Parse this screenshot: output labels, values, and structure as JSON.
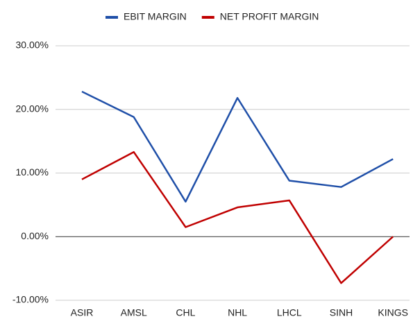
{
  "chart_data": {
    "type": "line",
    "categories": [
      "ASIR",
      "AMSL",
      "CHL",
      "NHL",
      "LHCL",
      "SINH",
      "KINGS"
    ],
    "series": [
      {
        "name": "EBIT MARGIN",
        "color": "#1f4fa8",
        "values": [
          22.8,
          18.8,
          5.5,
          21.8,
          8.8,
          7.8,
          12.2
        ]
      },
      {
        "name": "NET PROFIT MARGIN",
        "color": "#c00000",
        "values": [
          9.0,
          13.3,
          1.5,
          4.6,
          5.7,
          -7.3,
          0
        ]
      }
    ],
    "ylim": [
      -10,
      30
    ],
    "yticks": [
      {
        "value": -10,
        "label": "-10.00%"
      },
      {
        "value": 0,
        "label": "0.00%"
      },
      {
        "value": 10,
        "label": "10.00%"
      },
      {
        "value": 20,
        "label": "20.00%"
      },
      {
        "value": 30,
        "label": "30.00%"
      }
    ],
    "grid": true,
    "legend": "top"
  }
}
